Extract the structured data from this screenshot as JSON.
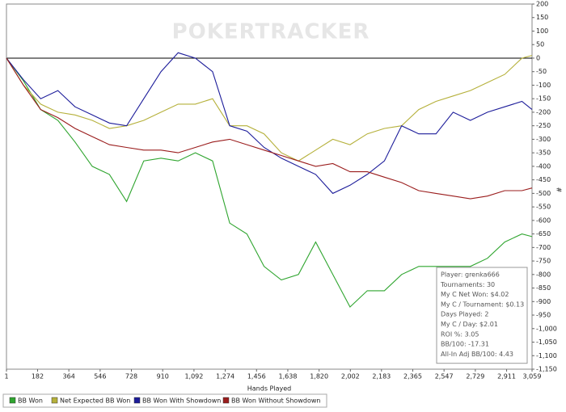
{
  "chart_data": {
    "type": "line",
    "watermark": "POKERTRACKER",
    "x_label": "Hands Played",
    "y_label": "#",
    "x": [
      1,
      100,
      200,
      300,
      400,
      500,
      600,
      700,
      800,
      900,
      1000,
      1100,
      1200,
      1300,
      1400,
      1500,
      1600,
      1700,
      1800,
      1900,
      2000,
      2100,
      2200,
      2300,
      2400,
      2500,
      2600,
      2700,
      2800,
      2900,
      3000,
      3059
    ],
    "series": [
      {
        "name": "BB Won",
        "color": "#2fa52f",
        "values": [
          0,
          -84,
          -190,
          -230,
          -310,
          -400,
          -430,
          -530,
          -380,
          -370,
          -380,
          -350,
          -380,
          -610,
          -650,
          -770,
          -820,
          -800,
          -680,
          -800,
          -920,
          -860,
          -860,
          -800,
          -770,
          -770,
          -770,
          -770,
          -740,
          -680,
          -650,
          -660
        ]
      },
      {
        "name": "Net Expected BB Won",
        "color": "#b5b03a",
        "values": [
          0,
          -100,
          -170,
          -200,
          -210,
          -230,
          -260,
          -250,
          -230,
          -200,
          -170,
          -170,
          -150,
          -250,
          -250,
          -280,
          -350,
          -380,
          -340,
          -300,
          -320,
          -280,
          -260,
          -250,
          -190,
          -160,
          -140,
          -120,
          -90,
          -60,
          0,
          10
        ]
      },
      {
        "name": "BB Won With Showdown",
        "color": "#1c1c9a",
        "values": [
          0,
          -80,
          -150,
          -120,
          -180,
          -210,
          -240,
          -250,
          -150,
          -50,
          20,
          0,
          -50,
          -250,
          -270,
          -330,
          -370,
          -400,
          -430,
          -500,
          -470,
          -430,
          -380,
          -250,
          -280,
          -280,
          -200,
          -230,
          -200,
          -180,
          -160,
          -190
        ]
      },
      {
        "name": "BB Won Without Showdown",
        "color": "#9a1c1c",
        "values": [
          0,
          -100,
          -190,
          -220,
          -260,
          -290,
          -320,
          -330,
          -340,
          -340,
          -350,
          -330,
          -310,
          -300,
          -320,
          -340,
          -360,
          -380,
          -400,
          -390,
          -420,
          -420,
          -440,
          -460,
          -490,
          -500,
          -510,
          -520,
          -510,
          -490,
          -490,
          -480
        ]
      }
    ],
    "xlim": [
      1,
      3059
    ],
    "xticks": [
      1,
      182,
      364,
      546,
      728,
      910,
      {
        "value": 1092,
        "label": "1,092"
      },
      {
        "value": 1274,
        "label": "1,274"
      },
      {
        "value": 1456,
        "label": "1,456"
      },
      {
        "value": 1638,
        "label": "1,638"
      },
      {
        "value": 1820,
        "label": "1,820"
      },
      {
        "value": 2002,
        "label": "2,002"
      },
      {
        "value": 2183,
        "label": "2,183"
      },
      {
        "value": 2365,
        "label": "2,365"
      },
      {
        "value": 2547,
        "label": "2,547"
      },
      {
        "value": 2729,
        "label": "2,729"
      },
      {
        "value": 2911,
        "label": "2,911"
      },
      {
        "value": 3059,
        "label": "3,059"
      }
    ],
    "ylim": [
      -1150,
      200
    ],
    "yticks": [
      200,
      150,
      100,
      50,
      0,
      -50,
      -100,
      -150,
      -200,
      -250,
      -300,
      -350,
      -400,
      -450,
      -500,
      -550,
      -600,
      -650,
      -700,
      -750,
      -800,
      -850,
      -900,
      -950,
      {
        "value": -1000,
        "label": "-1,000"
      },
      {
        "value": -1050,
        "label": "-1,050"
      },
      {
        "value": -1100,
        "label": "-1,100"
      },
      {
        "value": -1150,
        "label": "-1,150"
      }
    ],
    "grid": false,
    "legend": "bottom",
    "stats": [
      "Player: grenka666",
      "Tournaments: 30",
      "My C Net Won: $4.02",
      "My C / Tournament: $0.13",
      "Days Played: 2",
      "My C / Day: $2.01",
      "ROI %: 3.05",
      "BB/100: -17.31",
      "All-In Adj BB/100: 4.43"
    ]
  }
}
